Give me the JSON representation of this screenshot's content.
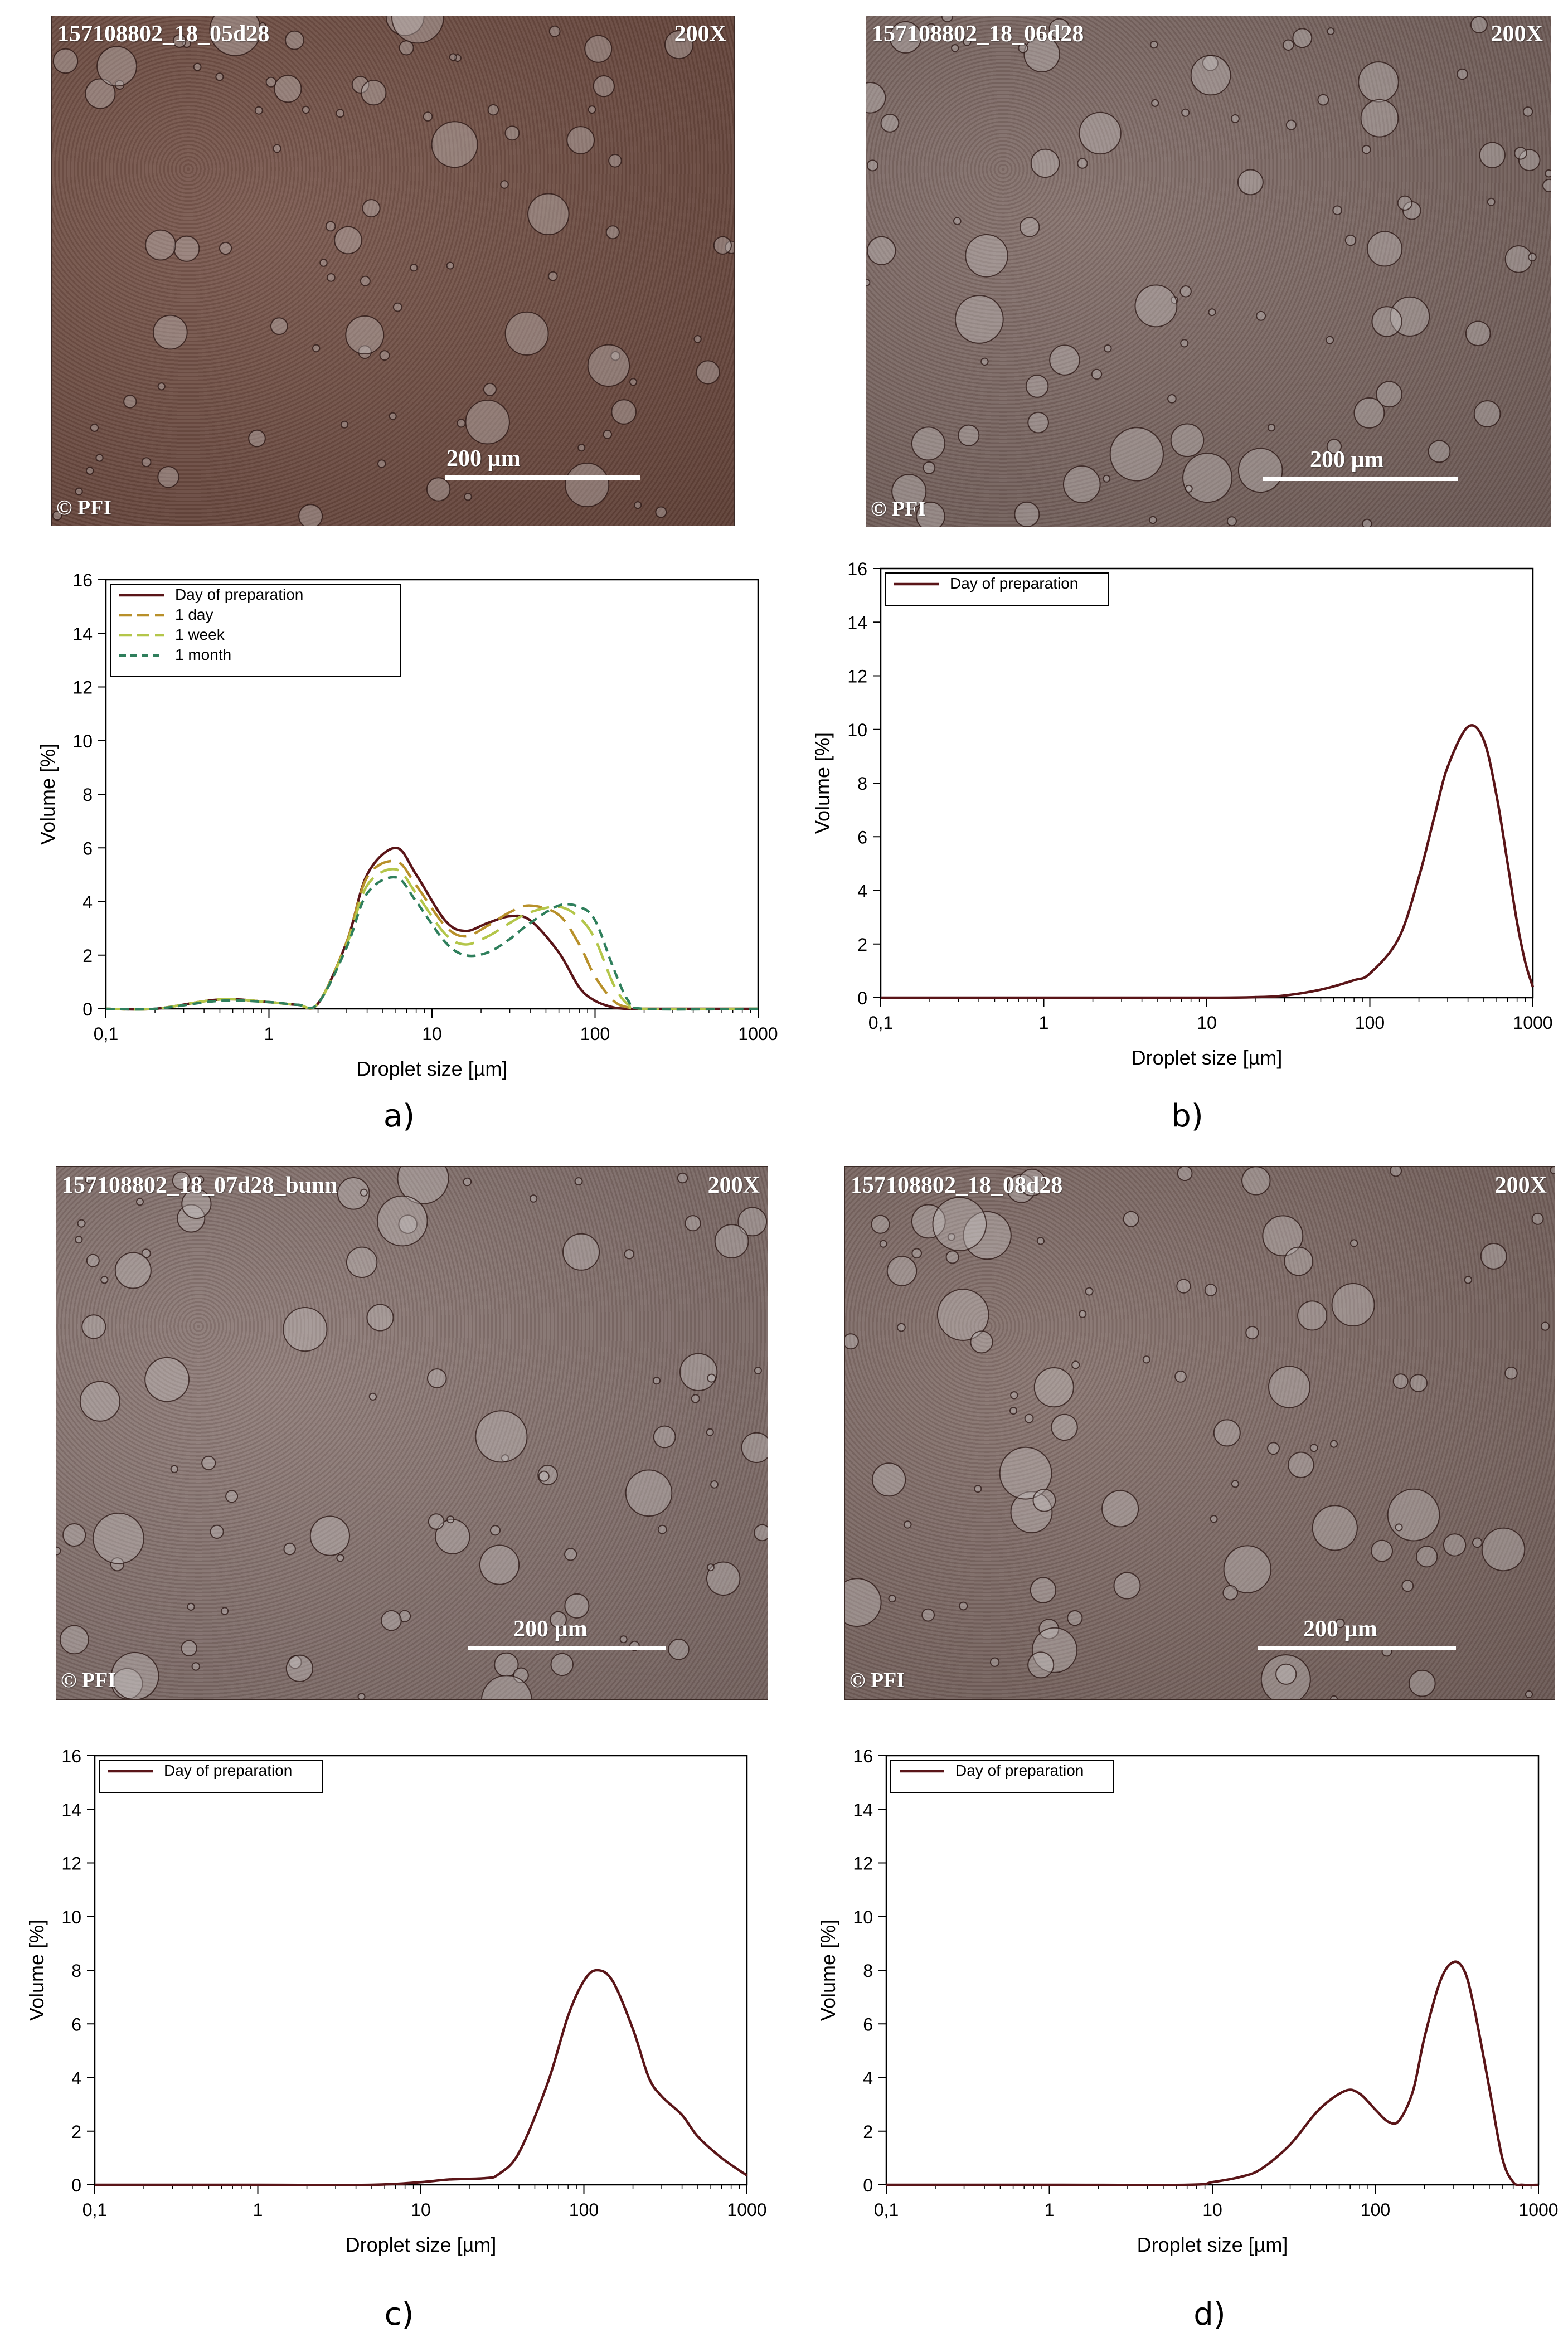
{
  "colors": {
    "day_of_preparation": "#5a1518",
    "one_day": "#b8902a",
    "one_week": "#b4c64a",
    "one_month": "#2f7f5c"
  },
  "panels": [
    {
      "label": "a)",
      "micrograph": {
        "sample_id": "157108802_18_05d28",
        "magnification": "200X",
        "scale_label": "200 µm",
        "copyright": "© PFI",
        "tone": "#6e4a3f"
      }
    },
    {
      "label": "b)",
      "micrograph": {
        "sample_id": "157108802_18_06d28",
        "magnification": "200X",
        "scale_label": "200 µm",
        "copyright": "© PFI",
        "tone": "#7a6560"
      }
    },
    {
      "label": "c)",
      "micrograph": {
        "sample_id": "157108802_18_07d28_bunn",
        "magnification": "200X",
        "scale_label": "200 µm",
        "copyright": "© PFI",
        "tone": "#85716d"
      }
    },
    {
      "label": "d)",
      "micrograph": {
        "sample_id": "157108802_18_08d28",
        "magnification": "200X",
        "scale_label": "200 µm",
        "copyright": "© PFI",
        "tone": "#7d6863"
      }
    }
  ],
  "chart_data": [
    {
      "type": "line",
      "xlabel": "Droplet size [µm]",
      "ylabel": "Volume [%]",
      "x_scale": "log",
      "xlim": [
        0.1,
        1000
      ],
      "ylim": [
        0,
        16
      ],
      "x_tick_labels": [
        "0,1",
        "1",
        "10",
        "100",
        "1000"
      ],
      "y_ticks": [
        0,
        2,
        4,
        6,
        8,
        10,
        12,
        14,
        16
      ],
      "legend": "top-left",
      "series": [
        {
          "name": "Day of preparation",
          "color_key": "day_of_preparation",
          "dash": "solid",
          "x": [
            0.1,
            0.2,
            0.5,
            1,
            1.5,
            2,
            3,
            4,
            6,
            8,
            12,
            16,
            22,
            30,
            40,
            60,
            80,
            100,
            130,
            160,
            200,
            1000
          ],
          "y": [
            0,
            0,
            0.35,
            0.25,
            0.15,
            0.2,
            2.5,
            5.0,
            6.0,
            5.0,
            3.3,
            2.9,
            3.2,
            3.45,
            3.3,
            2.1,
            0.8,
            0.3,
            0.05,
            0,
            0,
            0
          ]
        },
        {
          "name": "1 day",
          "color_key": "one_day",
          "dash": "long",
          "x": [
            0.1,
            0.2,
            0.5,
            1,
            1.5,
            2,
            3,
            4,
            6,
            8,
            12,
            16,
            22,
            30,
            40,
            60,
            80,
            100,
            130,
            160,
            200,
            1000
          ],
          "y": [
            0,
            0,
            0.35,
            0.25,
            0.15,
            0.2,
            2.5,
            4.9,
            5.5,
            4.6,
            3.1,
            2.7,
            3.1,
            3.6,
            3.85,
            3.5,
            2.4,
            1.2,
            0.3,
            0.05,
            0,
            0
          ]
        },
        {
          "name": "1 week",
          "color_key": "one_week",
          "dash": "long",
          "x": [
            0.1,
            0.2,
            0.5,
            1,
            1.5,
            2,
            3,
            4,
            6,
            8,
            12,
            16,
            22,
            30,
            40,
            60,
            80,
            100,
            130,
            160,
            200,
            1000
          ],
          "y": [
            0,
            0,
            0.35,
            0.25,
            0.15,
            0.2,
            2.4,
            4.6,
            5.2,
            4.3,
            2.8,
            2.4,
            2.7,
            3.2,
            3.6,
            3.8,
            3.4,
            2.6,
            0.9,
            0.15,
            0,
            0
          ]
        },
        {
          "name": "1 month",
          "color_key": "one_month",
          "dash": "short",
          "x": [
            0.1,
            0.2,
            0.5,
            1,
            1.5,
            2,
            3,
            4,
            6,
            8,
            12,
            16,
            22,
            30,
            40,
            60,
            80,
            100,
            130,
            160,
            200,
            1000
          ],
          "y": [
            0,
            0,
            0.3,
            0.25,
            0.15,
            0.2,
            2.3,
            4.3,
            4.9,
            4.0,
            2.5,
            2.0,
            2.1,
            2.6,
            3.2,
            3.85,
            3.8,
            3.3,
            1.5,
            0.3,
            0,
            0
          ]
        }
      ]
    },
    {
      "type": "line",
      "xlabel": "Droplet size [µm]",
      "ylabel": "Volume [%]",
      "x_scale": "log",
      "xlim": [
        0.1,
        1000
      ],
      "ylim": [
        0,
        16
      ],
      "x_tick_labels": [
        "0,1",
        "1",
        "10",
        "100",
        "1000"
      ],
      "y_ticks": [
        0,
        2,
        4,
        6,
        8,
        10,
        12,
        14,
        16
      ],
      "legend": "top-left",
      "series": [
        {
          "name": "Day of preparation",
          "color_key": "day_of_preparation",
          "dash": "solid",
          "x": [
            0.1,
            1,
            10,
            20,
            30,
            50,
            80,
            100,
            150,
            200,
            250,
            300,
            400,
            500,
            600,
            700,
            800,
            900,
            1000
          ],
          "y": [
            0,
            0,
            0,
            0.02,
            0.08,
            0.3,
            0.65,
            0.9,
            2.2,
            4.5,
            6.8,
            8.6,
            10.1,
            9.6,
            7.5,
            5.0,
            2.8,
            1.3,
            0.4
          ]
        }
      ]
    },
    {
      "type": "line",
      "xlabel": "Droplet size [µm]",
      "ylabel": "Volume [%]",
      "x_scale": "log",
      "xlim": [
        0.1,
        1000
      ],
      "ylim": [
        0,
        16
      ],
      "x_tick_labels": [
        "0,1",
        "1",
        "10",
        "100",
        "1000"
      ],
      "y_ticks": [
        0,
        2,
        4,
        6,
        8,
        10,
        12,
        14,
        16
      ],
      "legend": "top-left",
      "series": [
        {
          "name": "Day of preparation",
          "color_key": "day_of_preparation",
          "dash": "solid",
          "x": [
            0.1,
            1,
            5,
            10,
            15,
            25,
            30,
            40,
            60,
            80,
            100,
            120,
            150,
            200,
            250,
            300,
            400,
            500,
            700,
            1000
          ],
          "y": [
            0,
            0,
            0,
            0.1,
            0.2,
            0.25,
            0.4,
            1.2,
            3.8,
            6.3,
            7.6,
            8.0,
            7.6,
            5.8,
            4.0,
            3.3,
            2.6,
            1.8,
            1.0,
            0.35
          ]
        }
      ]
    },
    {
      "type": "line",
      "xlabel": "Droplet size [µm]",
      "ylabel": "Volume [%]",
      "x_scale": "log",
      "xlim": [
        0.1,
        1000
      ],
      "ylim": [
        0,
        16
      ],
      "x_tick_labels": [
        "0,1",
        "1",
        "10",
        "100",
        "1000"
      ],
      "y_ticks": [
        0,
        2,
        4,
        6,
        8,
        10,
        12,
        14,
        16
      ],
      "legend": "top-left",
      "series": [
        {
          "name": "Day of preparation",
          "color_key": "day_of_preparation",
          "dash": "solid",
          "x": [
            0.1,
            1,
            7,
            10,
            15,
            20,
            30,
            45,
            65,
            80,
            100,
            120,
            140,
            170,
            200,
            250,
            300,
            350,
            400,
            500,
            600,
            700,
            800,
            1000
          ],
          "y": [
            0,
            0,
            0,
            0.1,
            0.3,
            0.6,
            1.5,
            2.8,
            3.5,
            3.4,
            2.8,
            2.35,
            2.4,
            3.5,
            5.5,
            7.6,
            8.3,
            8.0,
            6.7,
            3.6,
            1.0,
            0.1,
            0,
            0
          ]
        }
      ]
    }
  ]
}
